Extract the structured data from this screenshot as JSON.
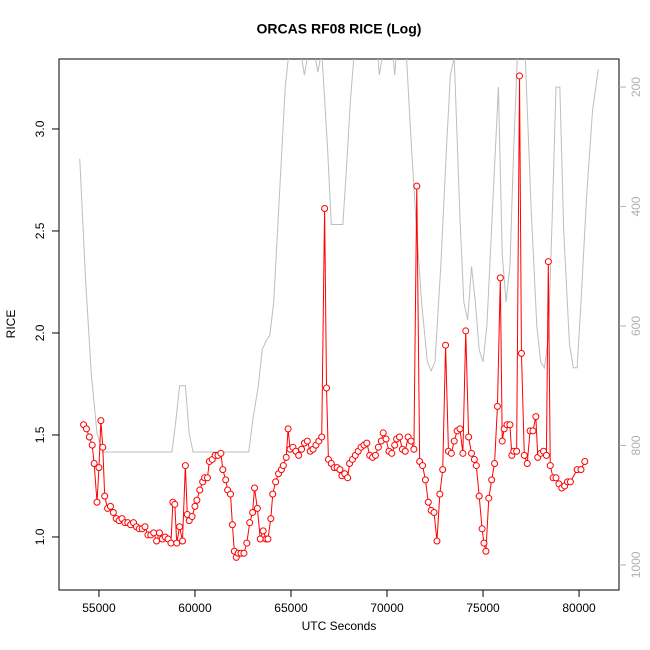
{
  "chart_data": {
    "type": "line",
    "title": "ORCAS RF08 RICE (Log)",
    "xlabel": "UTC Seconds",
    "ylabel": "RICE",
    "xlim": [
      52920,
      82080
    ],
    "xticks": [
      55000,
      60000,
      65000,
      70000,
      75000,
      80000
    ],
    "ylim": [
      0.74,
      3.343
    ],
    "yticks": [
      {
        "value": 1,
        "label": "1.0"
      },
      1.5,
      {
        "value": 2,
        "label": "2.0"
      },
      2.5,
      {
        "value": 3,
        "label": "3.0"
      }
    ],
    "y2lim": [
      1042,
      153
    ],
    "y2ticks": [
      200,
      400,
      600,
      800,
      1000
    ],
    "series": [
      {
        "color": "#ff0000",
        "markers": true,
        "x": [
          54200,
          54350,
          54500,
          54650,
          54750,
          54900,
          55000,
          55100,
          55200,
          55300,
          55450,
          55600,
          55750,
          55900,
          56050,
          56200,
          56350,
          56500,
          56650,
          56800,
          56950,
          57100,
          57250,
          57400,
          57550,
          57700,
          57850,
          58000,
          58150,
          58300,
          58450,
          58600,
          58750,
          58850,
          58950,
          59050,
          59200,
          59350,
          59500,
          59600,
          59700,
          59850,
          60000,
          60100,
          60250,
          60400,
          60500,
          60650,
          60750,
          60900,
          61050,
          61200,
          61350,
          61450,
          61600,
          61700,
          61850,
          61950,
          62050,
          62150,
          62250,
          62400,
          62550,
          62700,
          62850,
          63000,
          63100,
          63250,
          63400,
          63550,
          63700,
          63800,
          63950,
          64050,
          64200,
          64350,
          64500,
          64600,
          64750,
          64850,
          64950,
          65100,
          65250,
          65400,
          65550,
          65700,
          65850,
          66000,
          66150,
          66300,
          66450,
          66600,
          66750,
          66850,
          66950,
          67100,
          67250,
          67400,
          67550,
          67650,
          67800,
          67950,
          68050,
          68200,
          68350,
          68500,
          68650,
          68800,
          68950,
          69100,
          69250,
          69400,
          69550,
          69700,
          69800,
          69950,
          70100,
          70250,
          70400,
          70500,
          70650,
          70800,
          70950,
          71100,
          71250,
          71400,
          71550,
          71700,
          71850,
          72000,
          72150,
          72300,
          72450,
          72600,
          72750,
          72900,
          73050,
          73200,
          73350,
          73500,
          73650,
          73800,
          73950,
          74100,
          74250,
          74400,
          74550,
          74650,
          74800,
          74950,
          75050,
          75150,
          75300,
          75450,
          75600,
          75750,
          75900,
          76000,
          76100,
          76250,
          76400,
          76500,
          76600,
          76750,
          76900,
          77000,
          77150,
          77300,
          77450,
          77600,
          77750,
          77850,
          78000,
          78150,
          78300,
          78400,
          78500,
          78650,
          78800,
          78950,
          79100,
          79250,
          79400,
          79550,
          79900,
          80100,
          80300
        ],
        "values": [
          1.55,
          1.53,
          1.49,
          1.45,
          1.36,
          1.17,
          1.34,
          1.57,
          1.44,
          1.2,
          1.14,
          1.15,
          1.12,
          1.09,
          1.08,
          1.09,
          1.07,
          1.07,
          1.06,
          1.07,
          1.05,
          1.04,
          1.04,
          1.05,
          1.01,
          1.01,
          1.02,
          0.98,
          1.02,
          0.99,
          1.0,
          0.99,
          0.97,
          1.17,
          1.16,
          0.97,
          1.05,
          0.98,
          1.35,
          1.11,
          1.08,
          1.1,
          1.15,
          1.18,
          1.23,
          1.27,
          1.29,
          1.29,
          1.37,
          1.38,
          1.4,
          1.4,
          1.41,
          1.33,
          1.28,
          1.23,
          1.21,
          1.06,
          0.93,
          0.9,
          0.92,
          0.92,
          0.92,
          0.97,
          1.07,
          1.12,
          1.24,
          1.14,
          0.99,
          1.03,
          0.99,
          0.99,
          1.09,
          1.21,
          1.27,
          1.31,
          1.33,
          1.35,
          1.39,
          1.53,
          1.43,
          1.44,
          1.42,
          1.4,
          1.43,
          1.46,
          1.47,
          1.42,
          1.43,
          1.45,
          1.47,
          1.49,
          2.61,
          1.73,
          1.38,
          1.36,
          1.34,
          1.34,
          1.33,
          1.3,
          1.31,
          1.29,
          1.36,
          1.38,
          1.4,
          1.42,
          1.44,
          1.45,
          1.46,
          1.4,
          1.39,
          1.4,
          1.44,
          1.47,
          1.51,
          1.48,
          1.42,
          1.41,
          1.45,
          1.48,
          1.49,
          1.43,
          1.42,
          1.49,
          1.47,
          1.43,
          2.72,
          1.37,
          1.35,
          1.28,
          1.17,
          1.13,
          1.12,
          0.98,
          1.21,
          1.33,
          1.94,
          1.42,
          1.41,
          1.47,
          1.52,
          1.53,
          1.41,
          2.01,
          1.49,
          1.41,
          1.38,
          1.35,
          1.2,
          1.04,
          0.97,
          0.93,
          1.19,
          1.28,
          1.36,
          1.64,
          2.27,
          1.47,
          1.53,
          1.55,
          1.55,
          1.4,
          1.42,
          1.42,
          3.26,
          1.9,
          1.4,
          1.36,
          1.52,
          1.52,
          1.59,
          1.39,
          1.41,
          1.42,
          1.4,
          2.35,
          1.35,
          1.29,
          1.29,
          1.26,
          1.24,
          1.25,
          1.27,
          1.27,
          1.33,
          1.33,
          1.37
        ]
      },
      {
        "color": "#bebebe",
        "axis": "y2",
        "x": [
          54000,
          54300,
          54600,
          54900,
          55200,
          58800,
          59000,
          59200,
          59500,
          59700,
          59900,
          62800,
          63000,
          63300,
          63500,
          63700,
          63900,
          64100,
          64300,
          64500,
          64700,
          64900,
          65500,
          65700,
          65900,
          66200,
          66400,
          66600,
          66900,
          67100,
          67700,
          67900,
          68100,
          68300,
          69500,
          69600,
          69800,
          70300,
          70400,
          70500,
          71000,
          71200,
          71500,
          71800,
          72100,
          72300,
          72500,
          72800,
          73100,
          73300,
          73500,
          73800,
          74000,
          74200,
          74400,
          74600,
          74800,
          75000,
          75200,
          75500,
          75800,
          76000,
          76200,
          76400,
          76600,
          76800,
          77200,
          77500,
          77800,
          78000,
          78200,
          78400,
          78600,
          78800,
          79000,
          79200,
          79500,
          79700,
          79900,
          80100,
          80400,
          80700,
          81000
        ],
        "values": [
          320,
          520,
          680,
          780,
          811,
          811,
          760,
          700,
          700,
          780,
          811,
          811,
          760,
          700,
          640,
          625,
          615,
          560,
          440,
          320,
          200,
          140,
          140,
          180,
          140,
          140,
          175,
          140,
          300,
          430,
          430,
          330,
          220,
          140,
          140,
          180,
          140,
          140,
          180,
          140,
          140,
          260,
          420,
          560,
          660,
          675,
          660,
          500,
          300,
          180,
          150,
          420,
          560,
          590,
          500,
          560,
          640,
          660,
          600,
          400,
          200,
          480,
          560,
          500,
          300,
          140,
          150,
          400,
          600,
          660,
          670,
          620,
          420,
          200,
          200,
          440,
          630,
          670,
          670,
          560,
          380,
          240,
          170
        ]
      }
    ]
  }
}
